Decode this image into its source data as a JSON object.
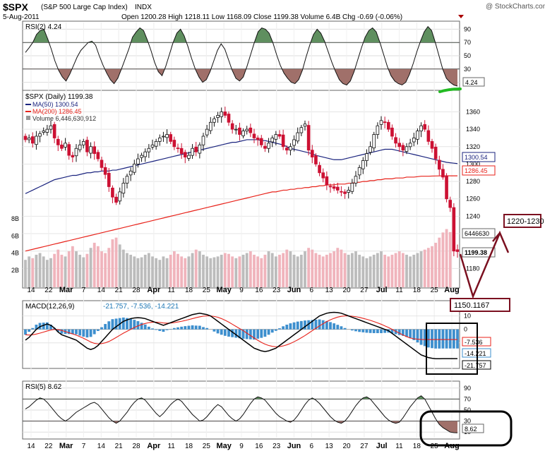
{
  "header": {
    "ticker": "$SPX",
    "name": "(S&P 500 Large Cap Index)",
    "exchange": "INDX",
    "watermark": "@ StockCharts.com",
    "date": "5-Aug-2011",
    "ohlc_text": "Open 1200.28  High 1218.11  Low 1168.09  Close 1199.38  Volume 6.4B  Chg -0.69 (-0.06%)"
  },
  "annotations": {
    "target": "1220-1230",
    "low": "1150.1167"
  },
  "legend": {
    "rsi2": "RSI(2) 4.24",
    "price": "$SPX (Daily) 1199.38",
    "ma50": "MA(50) 1300.54",
    "ma200": "MA(200) 1286.45",
    "volume": "Volume 6,446,630,912",
    "macd_name": "MACD(12,26,9)",
    "macd_values": "-21.757, -7.536, -14.221",
    "rsi5": "RSI(5) 8.62"
  },
  "side_labels": {
    "rsi2_last": "4.24",
    "ma50_last": "1300.54",
    "ma200_last": "1286.45",
    "close_last": "1199.38",
    "volume_last": "6446630",
    "macd_signal_last": "-7.536",
    "macd_hist_last": "-14.221",
    "macd_last": "-21.757",
    "rsi5_last": "8.62"
  },
  "colors": {
    "up": "#111111",
    "down": "#cc1133",
    "ma50": "#1a237e",
    "ma200": "#e8221a",
    "macd": "#000000",
    "signal": "#e8221a",
    "hist": "#3d8fce",
    "rsi_fill_high": "#5f8f5f",
    "rsi_fill_low": "#a0706a",
    "annotation": "#7b1020",
    "green_mark": "#22bb22"
  },
  "chart_data": [
    {
      "panel": "rsi2",
      "type": "line",
      "title": "RSI(2) 4.24",
      "yticks": [
        10,
        30,
        50,
        70,
        90
      ],
      "ylim": [
        0,
        100
      ],
      "levels": [
        30,
        70
      ],
      "values": [
        55,
        62,
        70,
        82,
        88,
        90,
        76,
        60,
        42,
        28,
        18,
        12,
        22,
        35,
        48,
        58,
        64,
        70,
        72,
        66,
        50,
        36,
        24,
        14,
        8,
        16,
        30,
        45,
        60,
        78,
        86,
        92,
        88,
        74,
        58,
        40,
        26,
        20,
        34,
        52,
        70,
        84,
        90,
        80,
        64,
        46,
        30,
        18,
        10,
        14,
        26,
        42,
        58,
        68,
        60,
        44,
        28,
        16,
        12,
        18,
        34,
        52,
        70,
        86,
        92,
        90,
        84,
        70,
        52,
        36,
        24,
        16,
        10,
        8,
        14,
        28,
        48,
        66,
        82,
        90,
        84,
        72,
        56,
        40,
        26,
        14,
        8,
        6,
        12,
        26,
        44,
        62,
        78,
        88,
        92,
        86,
        70,
        52,
        34,
        20,
        12,
        8,
        6,
        10,
        22,
        38,
        56,
        72,
        86,
        94,
        88,
        70,
        50,
        30,
        16,
        10,
        6,
        4.24
      ]
    },
    {
      "panel": "price",
      "type": "candlestick",
      "title": "$SPX (Daily) 1199.38",
      "yticks": [
        1180,
        1200,
        1220,
        1240,
        1260,
        1280,
        1300,
        1320,
        1340,
        1360
      ],
      "ylim": [
        1160,
        1375
      ],
      "xticks": [
        "14",
        "22",
        "Mar",
        "7",
        "14",
        "21",
        "28",
        "Apr",
        "11",
        "18",
        "25",
        "May",
        "9",
        "16",
        "23",
        "Jun",
        "6",
        "13",
        "20",
        "27",
        "Jul",
        "11",
        "18",
        "25",
        "Aug"
      ],
      "close": [
        1328,
        1330,
        1324,
        1332,
        1335,
        1338,
        1340,
        1344,
        1330,
        1322,
        1318,
        1324,
        1310,
        1308,
        1318,
        1322,
        1326,
        1314,
        1320,
        1312,
        1306,
        1296,
        1288,
        1274,
        1262,
        1256,
        1268,
        1278,
        1286,
        1292,
        1300,
        1306,
        1310,
        1314,
        1318,
        1322,
        1326,
        1330,
        1332,
        1334,
        1326,
        1320,
        1318,
        1312,
        1308,
        1310,
        1318,
        1314,
        1322,
        1332,
        1340,
        1348,
        1352,
        1356,
        1360,
        1356,
        1348,
        1340,
        1340,
        1334,
        1338,
        1340,
        1336,
        1330,
        1328,
        1322,
        1318,
        1324,
        1330,
        1334,
        1332,
        1320,
        1316,
        1320,
        1328,
        1336,
        1342,
        1346,
        1316,
        1308,
        1300,
        1290,
        1284,
        1276,
        1274,
        1272,
        1270,
        1268,
        1266,
        1270,
        1278,
        1286,
        1296,
        1304,
        1312,
        1320,
        1334,
        1344,
        1350,
        1348,
        1340,
        1332,
        1324,
        1320,
        1316,
        1320,
        1324,
        1330,
        1338,
        1344,
        1340,
        1326,
        1318,
        1306,
        1294,
        1285,
        1260,
        1250,
        1200,
        1199.38
      ],
      "ma50": [
        1266,
        1268,
        1270,
        1272,
        1274,
        1276,
        1278,
        1280,
        1282,
        1283,
        1284,
        1285,
        1286,
        1287,
        1287,
        1288,
        1289,
        1290,
        1290,
        1291,
        1291,
        1292,
        1292,
        1292,
        1293,
        1293,
        1294,
        1295,
        1296,
        1297,
        1298,
        1299,
        1300,
        1301,
        1302,
        1303,
        1304,
        1305,
        1306,
        1307,
        1308,
        1309,
        1310,
        1311,
        1312,
        1313,
        1314,
        1315,
        1316,
        1317,
        1318,
        1319,
        1320,
        1321,
        1322,
        1323,
        1324,
        1325,
        1325,
        1326,
        1327,
        1328,
        1328,
        1328,
        1328,
        1327,
        1327,
        1326,
        1325,
        1324,
        1323,
        1322,
        1320,
        1318,
        1317,
        1316,
        1315,
        1314,
        1313,
        1312,
        1310,
        1309,
        1308,
        1307,
        1306,
        1305,
        1305,
        1305,
        1306,
        1307,
        1308,
        1309,
        1310,
        1311,
        1312,
        1313,
        1314,
        1315,
        1316,
        1317,
        1317,
        1317,
        1316,
        1315,
        1314,
        1313,
        1312,
        1311,
        1310,
        1309,
        1308,
        1307,
        1306,
        1305,
        1304,
        1303,
        1302,
        1301.5,
        1301,
        1300.54
      ],
      "ma200": [
        1200,
        1201,
        1202,
        1203,
        1204,
        1205,
        1206,
        1207,
        1208,
        1209,
        1210,
        1211,
        1212,
        1213,
        1214,
        1215,
        1216,
        1217,
        1218,
        1219,
        1220,
        1221,
        1222,
        1223,
        1224,
        1225,
        1226,
        1227,
        1228,
        1229,
        1230,
        1231,
        1232,
        1233,
        1234,
        1235,
        1236,
        1237,
        1238,
        1239,
        1240,
        1241,
        1242,
        1243,
        1244,
        1245,
        1246,
        1247,
        1248,
        1249,
        1250,
        1251,
        1252,
        1253,
        1254,
        1255,
        1256,
        1257,
        1258,
        1259,
        1260,
        1261,
        1262,
        1263,
        1264,
        1265,
        1266,
        1267,
        1268,
        1268,
        1269,
        1270,
        1270,
        1271,
        1271,
        1272,
        1272,
        1273,
        1273,
        1274,
        1274,
        1275,
        1275,
        1276,
        1276,
        1276,
        1277,
        1277,
        1277,
        1278,
        1278,
        1279,
        1279,
        1280,
        1280,
        1281,
        1281,
        1282,
        1282,
        1283,
        1283,
        1283,
        1284,
        1284,
        1284,
        1285,
        1285,
        1285,
        1285.5,
        1286,
        1286,
        1286,
        1286.2,
        1286.3,
        1286.4,
        1286.45,
        1286.45,
        1286.45,
        1286.45,
        1286.45
      ]
    },
    {
      "panel": "volume",
      "type": "bar",
      "title": "Volume 6,446,630,912",
      "yticks": [
        "2B",
        "4B",
        "6B",
        "8B"
      ],
      "values_billion": [
        3.2,
        3.6,
        3.4,
        3.8,
        4.0,
        3.6,
        3.2,
        3.4,
        3.9,
        4.4,
        3.8,
        3.6,
        4.2,
        4.8,
        4.2,
        3.8,
        3.5,
        3.9,
        4.6,
        5.2,
        4.8,
        4.2,
        4.0,
        4.6,
        5.6,
        5.8,
        5.0,
        4.4,
        4.0,
        3.8,
        3.6,
        3.4,
        3.5,
        3.8,
        4.0,
        3.6,
        3.4,
        3.2,
        3.6,
        3.4,
        3.8,
        4.2,
        3.9,
        3.6,
        3.4,
        3.6,
        4.0,
        4.4,
        4.2,
        3.8,
        3.6,
        3.4,
        3.5,
        3.6,
        3.8,
        4.0,
        3.9,
        3.6,
        3.4,
        3.6,
        3.8,
        4.0,
        4.2,
        3.8,
        3.6,
        3.4,
        3.8,
        4.2,
        4.0,
        3.6,
        3.8,
        4.0,
        4.4,
        4.2,
        3.8,
        3.6,
        3.8,
        4.2,
        4.6,
        4.4,
        4.0,
        3.8,
        3.6,
        3.8,
        4.0,
        4.2,
        4.6,
        4.4,
        4.0,
        3.8,
        4.0,
        4.2,
        3.8,
        3.6,
        3.4,
        3.6,
        3.8,
        4.0,
        4.2,
        3.8,
        3.6,
        3.8,
        4.0,
        4.2,
        4.0,
        3.8,
        3.6,
        3.8,
        4.0,
        4.2,
        4.4,
        4.6,
        4.8,
        5.2,
        5.8,
        6.4,
        6.8,
        6.45
      ]
    },
    {
      "panel": "macd",
      "type": "line+histogram",
      "title": "MACD(12,26,9) -21.757, -7.536, -14.221",
      "yticks": [
        -10,
        0,
        10
      ],
      "ylim": [
        -28,
        14
      ],
      "macd": [
        -8,
        -6,
        -3,
        0,
        2,
        3,
        4,
        3,
        1,
        -2,
        -4,
        -5,
        -6,
        -7,
        -8,
        -10,
        -12,
        -14,
        -15,
        -14,
        -12,
        -9,
        -6,
        -3,
        0,
        2,
        4,
        6,
        7,
        8,
        8.5,
        8.7,
        8.5,
        8,
        7,
        6,
        5,
        4,
        3,
        4,
        5,
        6,
        7,
        8,
        9,
        10,
        11,
        11.5,
        12,
        11.5,
        11,
        10,
        8,
        6,
        4,
        2,
        0,
        -2,
        -4,
        -6,
        -8,
        -10,
        -12,
        -14,
        -15,
        -16,
        -16.5,
        -16,
        -15,
        -14,
        -12,
        -10,
        -8,
        -6,
        -4,
        -2,
        0,
        2,
        4,
        6,
        8,
        10,
        11,
        12,
        12.5,
        12.7,
        12.5,
        12,
        11,
        10,
        9,
        8,
        7,
        6,
        5,
        4,
        3,
        2,
        1,
        0,
        -1,
        -3,
        -5,
        -7,
        -9,
        -11,
        -13,
        -15,
        -17,
        -19,
        -20,
        -21,
        -21.5,
        -21.8,
        -21.8,
        -21.757,
        -21.757,
        -21.757,
        -21.757,
        -21.757
      ],
      "signal": [
        -4,
        -4.2,
        -4,
        -3.5,
        -2.8,
        -2,
        -1.2,
        -0.5,
        0,
        -0.2,
        -0.8,
        -1.6,
        -2.5,
        -3.4,
        -4.3,
        -5.4,
        -6.6,
        -8,
        -9.4,
        -10.4,
        -10.8,
        -10.6,
        -10,
        -9,
        -7.6,
        -6,
        -4.4,
        -2.8,
        -1.4,
        0,
        1.4,
        2.6,
        3.6,
        4.4,
        5,
        5.3,
        5.4,
        5.2,
        4.8,
        4.6,
        4.7,
        5,
        5.5,
        6,
        6.6,
        7.3,
        8,
        8.7,
        9.3,
        9.8,
        10,
        10,
        9.6,
        9,
        8,
        6.8,
        5.4,
        3.8,
        2.2,
        0.6,
        -1,
        -2.8,
        -4.6,
        -6.4,
        -8.1,
        -9.7,
        -11,
        -12,
        -12.6,
        -12.9,
        -12.8,
        -12.3,
        -11.5,
        -10.5,
        -9.2,
        -7.8,
        -6.2,
        -4.6,
        -2.8,
        -1,
        0.8,
        2.6,
        4.2,
        5.8,
        7.1,
        8.2,
        9.1,
        9.7,
        10,
        10,
        9.8,
        9.4,
        8.9,
        8.2,
        7.5,
        6.7,
        5.8,
        4.8,
        3.8,
        2.6,
        1.4,
        0,
        -1.4,
        -2.8,
        -4.2,
        -5.4,
        -6.4,
        -7,
        -7.3,
        -7.5,
        -7.536,
        -7.536,
        -7.536,
        -7.536,
        -7.536,
        -7.536,
        -7.536,
        -7.536,
        -7.536,
        -7.536
      ]
    },
    {
      "panel": "rsi5",
      "type": "line",
      "title": "RSI(5) 8.62",
      "yticks": [
        10,
        30,
        50,
        70,
        90
      ],
      "ylim": [
        0,
        100
      ],
      "levels": [
        30,
        70
      ],
      "values": [
        52,
        56,
        62,
        68,
        72,
        70,
        64,
        56,
        48,
        40,
        34,
        30,
        34,
        40,
        46,
        50,
        54,
        58,
        62,
        64,
        60,
        52,
        44,
        36,
        30,
        26,
        30,
        38,
        46,
        56,
        64,
        70,
        72,
        68,
        60,
        52,
        44,
        38,
        44,
        52,
        60,
        66,
        70,
        66,
        58,
        50,
        42,
        36,
        30,
        32,
        38,
        46,
        54,
        60,
        56,
        48,
        40,
        34,
        30,
        34,
        42,
        52,
        62,
        70,
        74,
        72,
        68,
        60,
        52,
        44,
        38,
        34,
        30,
        28,
        32,
        40,
        50,
        60,
        68,
        72,
        68,
        62,
        54,
        46,
        38,
        32,
        28,
        26,
        30,
        38,
        48,
        58,
        66,
        72,
        74,
        70,
        62,
        54,
        46,
        38,
        32,
        28,
        26,
        28,
        36,
        46,
        56,
        64,
        72,
        76,
        70,
        58,
        46,
        34,
        24,
        18,
        14,
        10,
        9,
        8.62
      ]
    }
  ]
}
